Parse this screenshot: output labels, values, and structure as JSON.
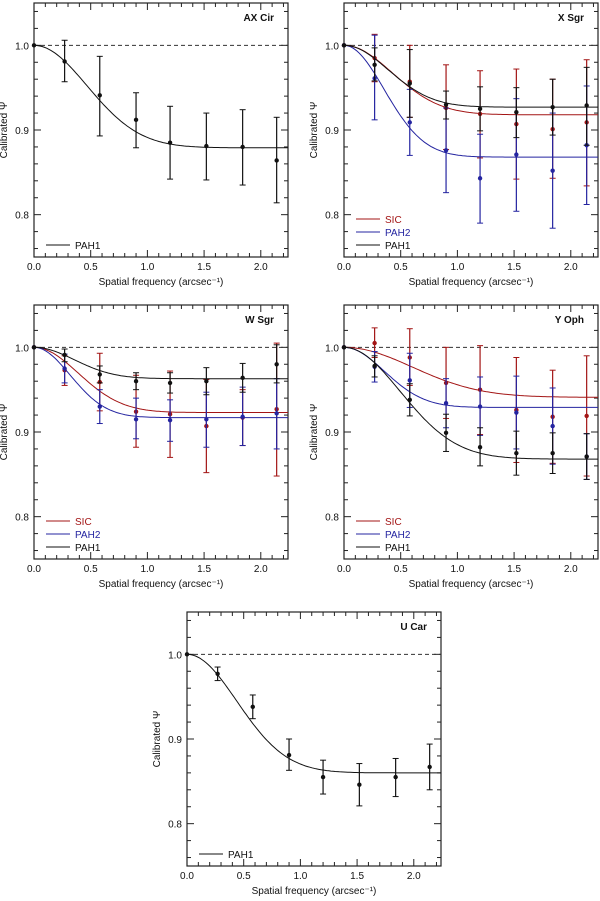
{
  "chart_data": [
    {
      "type": "scatter",
      "title": "AX Cir",
      "xlabel": "Spatial frequency (arcsec⁻¹)",
      "ylabel": "Calibrated Ψ",
      "xlim": [
        0,
        2.24
      ],
      "ylim": [
        0.75,
        1.05
      ],
      "xticks": [
        "0.0",
        "0.5",
        "1.0",
        "1.5",
        "2.0"
      ],
      "yticks": [
        "0.8",
        "0.9",
        "1.0"
      ],
      "reference_line": 1.0,
      "legend_position": "bottom-left",
      "series": [
        {
          "name": "PAH1",
          "color": "#111111",
          "x": [
            0,
            0.27,
            0.58,
            0.9,
            1.2,
            1.52,
            1.84,
            2.14
          ],
          "y": [
            1.0,
            0.981,
            0.941,
            0.912,
            0.885,
            0.881,
            0.88,
            0.864
          ],
          "err_low": [
            1.0,
            0.957,
            0.893,
            0.879,
            0.842,
            0.841,
            0.835,
            0.814
          ],
          "err_high": [
            1.0,
            1.006,
            0.987,
            0.944,
            0.928,
            0.92,
            0.924,
            0.915
          ],
          "fit_plateau": 0.879,
          "fit_width": 0.66
        }
      ]
    },
    {
      "type": "scatter",
      "title": "X Sgr",
      "xlabel": "Spatial frequency (arcsec⁻¹)",
      "ylabel": "Calibrated Ψ",
      "xlim": [
        0,
        2.24
      ],
      "ylim": [
        0.75,
        1.05
      ],
      "xticks": [
        "0.0",
        "0.5",
        "1.0",
        "1.5",
        "2.0"
      ],
      "yticks": [
        "0.8",
        "0.9",
        "1.0"
      ],
      "reference_line": 1.0,
      "legend_position": "bottom-left",
      "series": [
        {
          "name": "SIC",
          "color": "#a31515",
          "x": [
            0,
            0.27,
            0.58,
            0.9,
            1.2,
            1.52,
            1.84,
            2.14
          ],
          "y": [
            1.0,
            0.985,
            0.957,
            0.926,
            0.919,
            0.907,
            0.901,
            0.909
          ],
          "err_low": [
            1.0,
            0.957,
            0.915,
            0.877,
            0.867,
            0.842,
            0.843,
            0.834
          ],
          "err_high": [
            1.0,
            1.013,
            1.0,
            0.977,
            0.97,
            0.972,
            0.96,
            0.983
          ],
          "fit_plateau": 0.918,
          "fit_width": 0.6
        },
        {
          "name": "PAH2",
          "color": "#2424a0",
          "x": [
            0,
            0.27,
            0.58,
            0.9,
            1.2,
            1.52,
            1.84,
            2.14
          ],
          "y": [
            1.0,
            0.961,
            0.909,
            0.876,
            0.843,
            0.871,
            0.852,
            0.882
          ],
          "err_low": [
            1.0,
            0.912,
            0.87,
            0.826,
            0.79,
            0.804,
            0.784,
            0.812
          ],
          "err_high": [
            1.0,
            1.012,
            0.948,
            0.926,
            0.895,
            0.937,
            0.92,
            0.952
          ],
          "fit_plateau": 0.868,
          "fit_width": 0.5
        },
        {
          "name": "PAH1",
          "color": "#111111",
          "x": [
            0,
            0.27,
            0.58,
            0.9,
            1.2,
            1.52,
            1.84,
            2.14
          ],
          "y": [
            1.0,
            0.977,
            0.955,
            0.93,
            0.925,
            0.921,
            0.927,
            0.929
          ],
          "err_low": [
            1.0,
            0.958,
            0.915,
            0.913,
            0.899,
            0.891,
            0.894,
            0.882
          ],
          "err_high": [
            1.0,
            0.997,
            0.995,
            0.946,
            0.951,
            0.95,
            0.96,
            0.974
          ],
          "fit_plateau": 0.927,
          "fit_width": 0.55
        }
      ]
    },
    {
      "type": "scatter",
      "title": "W Sgr",
      "xlabel": "Spatial frequency (arcsec⁻¹)",
      "ylabel": "Calibrated Ψ",
      "xlim": [
        0,
        2.24
      ],
      "ylim": [
        0.75,
        1.05
      ],
      "xticks": [
        "0.0",
        "0.5",
        "1.0",
        "1.5",
        "2.0"
      ],
      "yticks": [
        "0.8",
        "0.9",
        "1.0"
      ],
      "reference_line": 1.0,
      "legend_position": "bottom-left",
      "series": [
        {
          "name": "SIC",
          "color": "#a31515",
          "x": [
            0,
            0.27,
            0.58,
            0.9,
            1.2,
            1.52,
            1.84,
            2.14
          ],
          "y": [
            1.0,
            0.973,
            0.959,
            0.924,
            0.921,
            0.907,
            0.917,
            0.927
          ],
          "err_low": [
            1.0,
            0.955,
            0.925,
            0.882,
            0.87,
            0.852,
            0.884,
            0.848
          ],
          "err_high": [
            1.0,
            0.99,
            0.993,
            0.967,
            0.972,
            0.962,
            0.95,
            1.005
          ],
          "fit_plateau": 0.923,
          "fit_width": 0.55
        },
        {
          "name": "PAH2",
          "color": "#2424a0",
          "x": [
            0,
            0.27,
            0.58,
            0.9,
            1.2,
            1.52,
            1.84,
            2.14
          ],
          "y": [
            1.0,
            0.975,
            0.93,
            0.915,
            0.914,
            0.915,
            0.918,
            0.922
          ],
          "err_low": [
            1.0,
            0.958,
            0.91,
            0.892,
            0.889,
            0.882,
            0.884,
            0.88
          ],
          "err_high": [
            1.0,
            0.992,
            0.95,
            0.94,
            0.938,
            0.947,
            0.953,
            0.963
          ],
          "fit_plateau": 0.917,
          "fit_width": 0.45
        },
        {
          "name": "PAH1",
          "color": "#111111",
          "x": [
            0,
            0.27,
            0.58,
            0.9,
            1.2,
            1.52,
            1.84,
            2.14
          ],
          "y": [
            1.0,
            0.991,
            0.968,
            0.96,
            0.958,
            0.96,
            0.964,
            0.98
          ],
          "err_low": [
            1.0,
            0.983,
            0.958,
            0.95,
            0.946,
            0.944,
            0.947,
            0.958
          ],
          "err_high": [
            1.0,
            0.998,
            0.978,
            0.97,
            0.97,
            0.976,
            0.981,
            1.003
          ],
          "fit_plateau": 0.963,
          "fit_width": 0.5
        }
      ]
    },
    {
      "type": "scatter",
      "title": "Y Oph",
      "xlabel": "Spatial frequency (arcsec⁻¹)",
      "ylabel": "Calibrated Ψ",
      "xlim": [
        0,
        2.24
      ],
      "ylim": [
        0.75,
        1.05
      ],
      "xticks": [
        "0.0",
        "0.5",
        "1.0",
        "1.5",
        "2.0"
      ],
      "yticks": [
        "0.8",
        "0.9",
        "1.0"
      ],
      "reference_line": 1.0,
      "legend_position": "bottom-left",
      "series": [
        {
          "name": "SIC",
          "color": "#a31515",
          "x": [
            0,
            0.27,
            0.58,
            0.9,
            1.2,
            1.52,
            1.84,
            2.14
          ],
          "y": [
            1.0,
            1.005,
            0.988,
            0.958,
            0.95,
            0.926,
            0.918,
            0.919
          ],
          "err_low": [
            1.0,
            0.988,
            0.955,
            0.916,
            0.897,
            0.864,
            0.863,
            0.848
          ],
          "err_high": [
            1.0,
            1.023,
            1.022,
            1.0,
            1.002,
            0.988,
            0.973,
            0.99
          ],
          "fit_plateau": 0.941,
          "fit_width": 0.85
        },
        {
          "name": "PAH2",
          "color": "#2424a0",
          "x": [
            0,
            0.27,
            0.58,
            0.9,
            1.2,
            1.52,
            1.84,
            2.14
          ],
          "y": [
            1.0,
            0.977,
            0.961,
            0.934,
            0.93,
            0.923,
            0.907,
            0.871
          ],
          "err_low": [
            1.0,
            0.959,
            0.929,
            0.905,
            0.896,
            0.88,
            0.862,
            0.844
          ],
          "err_high": [
            1.0,
            0.995,
            0.993,
            0.963,
            0.965,
            0.966,
            0.952,
            0.898
          ],
          "fit_plateau": 0.929,
          "fit_width": 0.5
        },
        {
          "name": "PAH1",
          "color": "#111111",
          "x": [
            0,
            0.27,
            0.58,
            0.9,
            1.2,
            1.52,
            1.84,
            2.14
          ],
          "y": [
            1.0,
            0.978,
            0.938,
            0.899,
            0.882,
            0.875,
            0.875,
            0.871
          ],
          "err_low": [
            1.0,
            0.965,
            0.919,
            0.877,
            0.86,
            0.849,
            0.851,
            0.844
          ],
          "err_high": [
            1.0,
            0.99,
            0.957,
            0.921,
            0.905,
            0.901,
            0.899,
            0.898
          ],
          "fit_plateau": 0.868,
          "fit_width": 0.7
        }
      ]
    },
    {
      "type": "scatter",
      "title": "U Car",
      "xlabel": "Spatial frequency (arcsec⁻¹)",
      "ylabel": "Calibrated Ψ",
      "xlim": [
        0,
        2.24
      ],
      "ylim": [
        0.75,
        1.05
      ],
      "xticks": [
        "0.0",
        "0.5",
        "1.0",
        "1.5",
        "2.0"
      ],
      "yticks": [
        "0.8",
        "0.9",
        "1.0"
      ],
      "reference_line": 1.0,
      "legend_position": "bottom-left",
      "series": [
        {
          "name": "PAH1",
          "color": "#111111",
          "x": [
            0,
            0.27,
            0.58,
            0.9,
            1.2,
            1.52,
            1.84,
            2.14
          ],
          "y": [
            1.0,
            0.977,
            0.938,
            0.881,
            0.855,
            0.846,
            0.855,
            0.867
          ],
          "err_low": [
            1.0,
            0.969,
            0.924,
            0.863,
            0.835,
            0.821,
            0.832,
            0.84
          ],
          "err_high": [
            1.0,
            0.985,
            0.952,
            0.9,
            0.875,
            0.871,
            0.877,
            0.894
          ],
          "fit_plateau": 0.86,
          "fit_width": 0.62
        }
      ]
    }
  ]
}
